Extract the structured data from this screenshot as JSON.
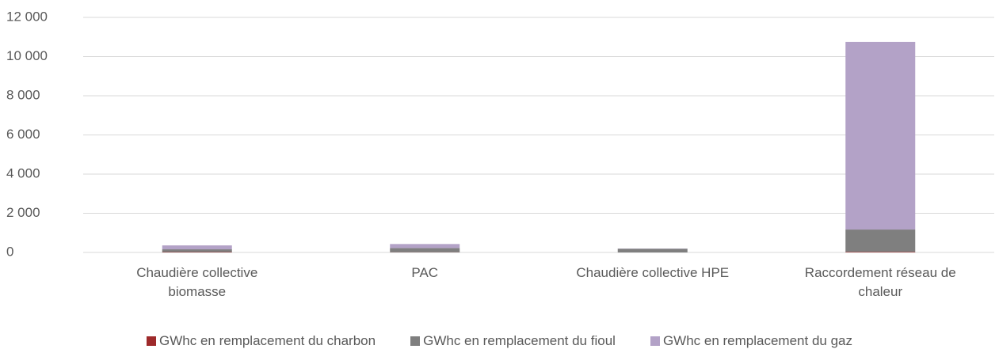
{
  "chart_data": {
    "type": "bar",
    "stacked": true,
    "categories": [
      "Chaudière collective biomasse",
      "PAC",
      "Chaudière collective HPE",
      "Raccordement réseau de chaleur"
    ],
    "series": [
      {
        "name": "GWhc en remplacement du charbon",
        "color": "#9e2a2b",
        "values": [
          20,
          10,
          0,
          30
        ]
      },
      {
        "name": "GWhc en remplacement du fioul",
        "color": "#7f7f7f",
        "values": [
          140,
          210,
          190,
          1140
        ]
      },
      {
        "name": "GWhc en remplacement du gaz",
        "color": "#b3a2c7",
        "values": [
          200,
          210,
          10,
          9580
        ]
      }
    ],
    "ylim": [
      0,
      12000
    ],
    "yticks": [
      0,
      {
        "value": 2000,
        "label": "2 000"
      },
      {
        "value": 4000,
        "label": "4 000"
      },
      {
        "value": 6000,
        "label": "6 000"
      },
      {
        "value": 8000,
        "label": "8 000"
      },
      {
        "value": 10000,
        "label": "10 000"
      },
      {
        "value": 12000,
        "label": "12 000"
      }
    ],
    "grid": true
  }
}
